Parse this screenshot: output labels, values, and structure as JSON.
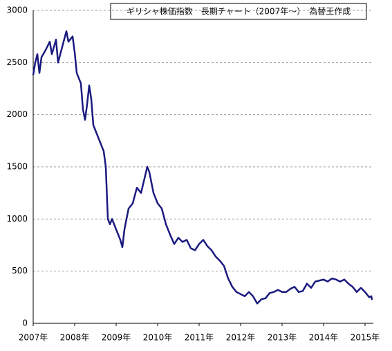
{
  "chart_data": {
    "type": "line",
    "title": "ギリシャ株価指数　長期チャート（2007年～）　為替王作成",
    "x": [
      2007.0,
      2007.05,
      2007.1,
      2007.15,
      2007.2,
      2007.3,
      2007.4,
      2007.45,
      2007.55,
      2007.6,
      2007.7,
      2007.8,
      2007.85,
      2007.95,
      2008.0,
      2008.05,
      2008.15,
      2008.2,
      2008.25,
      2008.3,
      2008.35,
      2008.4,
      2008.45,
      2008.5,
      2008.6,
      2008.7,
      2008.75,
      2008.8,
      2008.85,
      2008.9,
      2009.0,
      2009.1,
      2009.15,
      2009.2,
      2009.3,
      2009.4,
      2009.5,
      2009.6,
      2009.75,
      2009.8,
      2009.9,
      2010.0,
      2010.1,
      2010.2,
      2010.3,
      2010.4,
      2010.5,
      2010.6,
      2010.7,
      2010.8,
      2010.9,
      2011.0,
      2011.1,
      2011.2,
      2011.3,
      2011.4,
      2011.5,
      2011.6,
      2011.7,
      2011.8,
      2011.9,
      2012.0,
      2012.1,
      2012.2,
      2012.3,
      2012.4,
      2012.5,
      2012.6,
      2012.7,
      2012.8,
      2012.9,
      2013.0,
      2013.1,
      2013.2,
      2013.3,
      2013.4,
      2013.5,
      2013.6,
      2013.7,
      2013.8,
      2013.9,
      2014.0,
      2014.1,
      2014.2,
      2014.3,
      2014.4,
      2014.5,
      2014.6,
      2014.7,
      2014.8,
      2014.9,
      2015.0,
      2015.1,
      2015.15,
      2015.17
    ],
    "series": [
      {
        "color": "#1a1a80",
        "values": [
          2380,
          2500,
          2580,
          2400,
          2550,
          2620,
          2700,
          2580,
          2720,
          2500,
          2650,
          2800,
          2700,
          2750,
          2600,
          2400,
          2300,
          2050,
          1950,
          2100,
          2280,
          2150,
          1900,
          1850,
          1750,
          1650,
          1500,
          1000,
          950,
          1000,
          900,
          800,
          730,
          900,
          1100,
          1150,
          1300,
          1250,
          1500,
          1450,
          1250,
          1150,
          1100,
          950,
          850,
          760,
          820,
          780,
          800,
          720,
          700,
          760,
          800,
          740,
          700,
          640,
          600,
          550,
          430,
          350,
          300,
          280,
          260,
          300,
          260,
          190,
          230,
          240,
          290,
          300,
          320,
          300,
          300,
          330,
          350,
          300,
          310,
          380,
          340,
          400,
          410,
          420,
          400,
          430,
          420,
          400,
          420,
          380,
          350,
          300,
          340,
          300,
          250,
          260,
          225
        ]
      }
    ],
    "xlim": [
      2007,
      2015.2
    ],
    "xticks": [
      {
        "value": 2007,
        "label": "2007年"
      },
      {
        "value": 2008,
        "label": "2008年"
      },
      {
        "value": 2009,
        "label": "2009年"
      },
      {
        "value": 2010,
        "label": "2010年"
      },
      {
        "value": 2011,
        "label": "2011年"
      },
      {
        "value": 2012,
        "label": "2012年"
      },
      {
        "value": 2013,
        "label": "2013年"
      },
      {
        "value": 2014,
        "label": "2014年"
      },
      {
        "value": 2015,
        "label": "2015年"
      }
    ],
    "ylim": [
      0,
      3000
    ],
    "yticks": [
      0,
      500,
      1000,
      1500,
      2000,
      2500,
      3000
    ],
    "grid": true
  }
}
